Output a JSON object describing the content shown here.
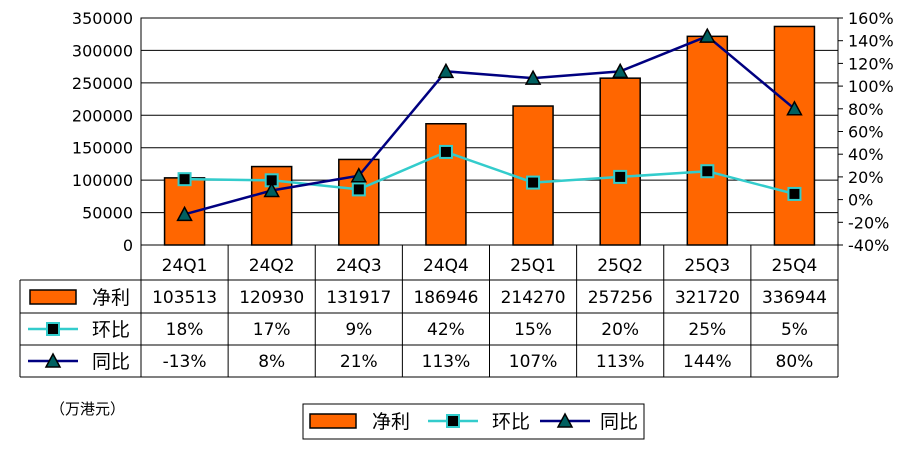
{
  "chart_data": {
    "type": "bar",
    "categories": [
      "24Q1",
      "24Q2",
      "24Q3",
      "24Q4",
      "25Q1",
      "25Q2",
      "25Q3",
      "25Q4"
    ],
    "unit_label": "（万港元）",
    "y_left": {
      "min": 0,
      "max": 350000,
      "step": 50000
    },
    "y_right": {
      "min": -40,
      "max": 160,
      "step": 20,
      "suffix": "%"
    },
    "grid": true,
    "legend_position": "bottom",
    "series": [
      {
        "name": "净利",
        "type": "bar",
        "axis": "left",
        "color": "#FF6600",
        "values": [
          103513,
          120930,
          131917,
          186946,
          214270,
          257256,
          321720,
          336944
        ],
        "labels": [
          "103513",
          "120930",
          "131917",
          "186946",
          "214270",
          "257256",
          "321720",
          "336944"
        ]
      },
      {
        "name": "环比",
        "type": "line",
        "axis": "right",
        "color": "#33CCCC",
        "marker": "square",
        "values": [
          18,
          17,
          9,
          42,
          15,
          20,
          25,
          5
        ],
        "labels": [
          "18%",
          "17%",
          "9%",
          "42%",
          "15%",
          "20%",
          "25%",
          "5%"
        ]
      },
      {
        "name": "同比",
        "type": "line",
        "axis": "right",
        "color": "#000080",
        "marker": "triangle",
        "values": [
          -13,
          8,
          21,
          113,
          107,
          113,
          144,
          80
        ],
        "labels": [
          "-13%",
          "8%",
          "21%",
          "113%",
          "107%",
          "113%",
          "144%",
          "80%"
        ]
      }
    ]
  }
}
